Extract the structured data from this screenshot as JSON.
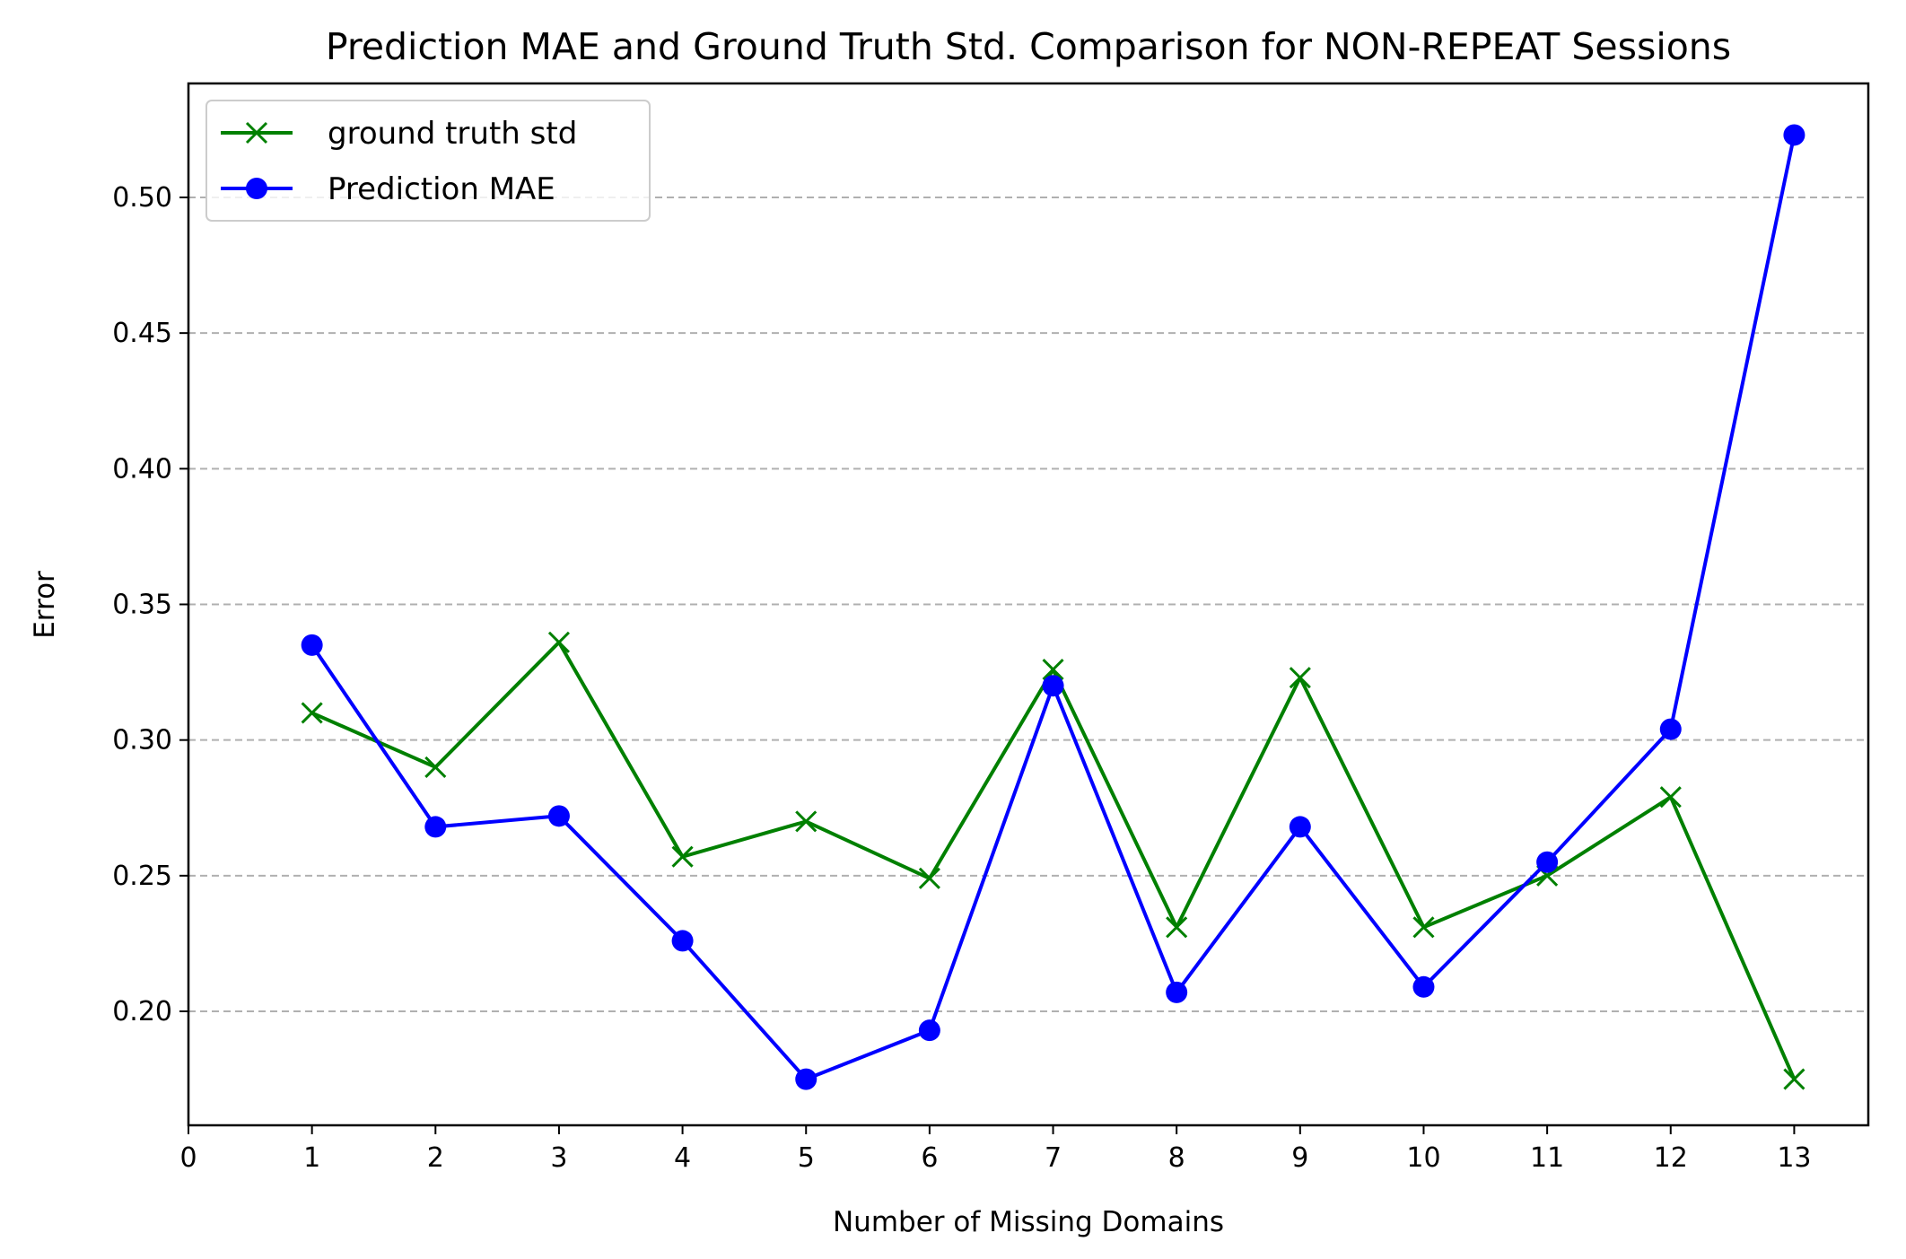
{
  "chart_data": {
    "type": "line",
    "title": "Prediction MAE and Ground Truth Std. Comparison for NON-REPEAT Sessions",
    "xlabel": "Number of Missing Domains",
    "ylabel": "Error",
    "x": [
      1,
      2,
      3,
      4,
      5,
      6,
      7,
      8,
      9,
      10,
      11,
      12,
      13
    ],
    "xticks": [
      "0",
      "1",
      "2",
      "3",
      "4",
      "5",
      "6",
      "7",
      "8",
      "9",
      "10",
      "11",
      "12",
      "13"
    ],
    "yticks": [
      "0.20",
      "0.25",
      "0.30",
      "0.35",
      "0.40",
      "0.45",
      "0.50"
    ],
    "xlim": [
      0,
      13.6
    ],
    "ylim": [
      0.158,
      0.542
    ],
    "grid": "horizontal dashed",
    "legend_position": "top-left",
    "series": [
      {
        "name": "ground truth std",
        "color": "#008000",
        "marker": "x",
        "values": [
          0.31,
          0.29,
          0.336,
          0.257,
          0.27,
          0.249,
          0.326,
          0.231,
          0.323,
          0.231,
          0.25,
          0.279,
          0.175
        ]
      },
      {
        "name": "Prediction MAE",
        "color": "#0000ff",
        "marker": "circle",
        "values": [
          0.335,
          0.268,
          0.272,
          0.226,
          0.175,
          0.193,
          0.32,
          0.207,
          0.268,
          0.209,
          0.255,
          0.304,
          0.523
        ]
      }
    ]
  }
}
